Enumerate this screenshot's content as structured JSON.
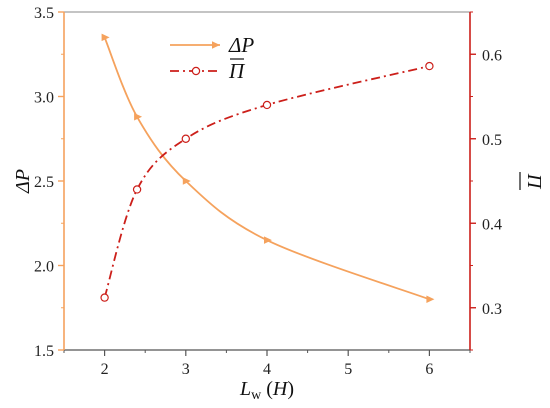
{
  "chart_data": {
    "type": "line",
    "x": [
      2,
      2.4,
      3,
      4,
      6
    ],
    "xlim": [
      1.5,
      6.5
    ],
    "xticks": [
      2,
      3,
      4,
      5,
      6
    ],
    "xlabel": "Lw (H)",
    "xlabel_parts": {
      "main": "L",
      "sub": "w",
      "paren_open": " (",
      "var": "H",
      "paren_close": ")"
    },
    "y_left": {
      "label": "ΔP",
      "lim": [
        1.5,
        3.5
      ],
      "ticks": [
        1.5,
        2.0,
        2.5,
        3.0,
        3.5
      ],
      "tick_labels": [
        "1.5",
        "2.0",
        "2.5",
        "3.0",
        "3.5"
      ],
      "color": "#f5a25d"
    },
    "y_right": {
      "label": "Π",
      "lim": [
        0.25,
        0.65
      ],
      "ticks": [
        0.3,
        0.4,
        0.5,
        0.6
      ],
      "tick_labels": [
        "0.3",
        "0.4",
        "0.5",
        "0.6"
      ],
      "color": "#cc1f1a"
    },
    "series": [
      {
        "name": "ΔP",
        "axis": "left",
        "values": [
          3.35,
          2.88,
          2.5,
          2.15,
          1.8
        ],
        "color": "#f5a25d",
        "line_style": "solid",
        "marker": "triangle-right"
      },
      {
        "name": "Π",
        "axis": "right",
        "values": [
          0.312,
          0.44,
          0.5,
          0.54,
          0.586
        ],
        "color": "#cc1f1a",
        "line_style": "dash-dot",
        "marker": "open-circle"
      }
    ],
    "legend": {
      "position": "top-center"
    },
    "grid": false
  }
}
